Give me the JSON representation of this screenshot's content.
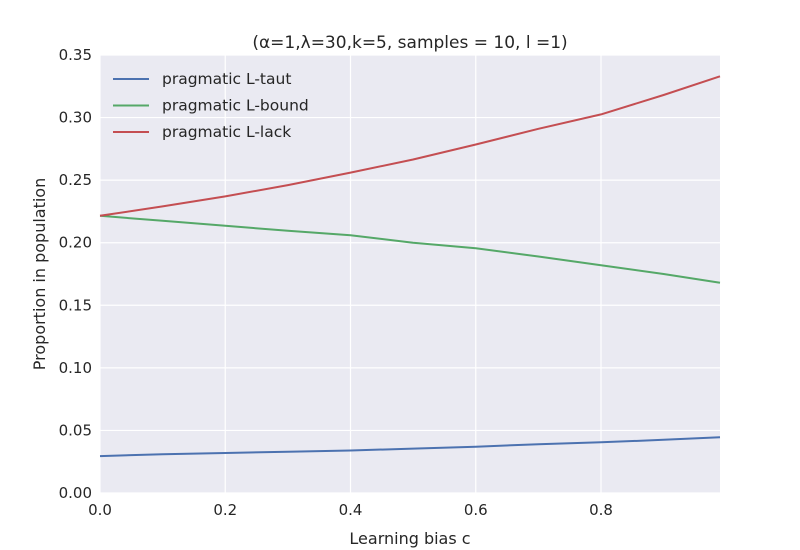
{
  "chart_data": {
    "type": "line",
    "title": "(α=1,λ=30,k=5, samples = 10, l =1)",
    "xlabel": "Learning bias c",
    "ylabel": "Proportion in population",
    "xlim": [
      0.0,
      0.99
    ],
    "ylim": [
      0.0,
      0.35
    ],
    "xticks": [
      "0.0",
      "0.2",
      "0.4",
      "0.6",
      "0.8"
    ],
    "yticks": [
      "0.00",
      "0.05",
      "0.10",
      "0.15",
      "0.20",
      "0.25",
      "0.30",
      "0.35"
    ],
    "grid": true,
    "legend_position": "top-left",
    "series": [
      {
        "name": "pragmatic L-taut",
        "color": "#4C72B0",
        "x": [
          0.0,
          0.1,
          0.2,
          0.3,
          0.4,
          0.5,
          0.6,
          0.7,
          0.8,
          0.9,
          0.99
        ],
        "values": [
          0.0295,
          0.031,
          0.032,
          0.033,
          0.034,
          0.0355,
          0.037,
          0.039,
          0.0405,
          0.0425,
          0.0445
        ]
      },
      {
        "name": "pragmatic L-bound",
        "color": "#55A868",
        "x": [
          0.0,
          0.1,
          0.2,
          0.3,
          0.4,
          0.5,
          0.6,
          0.7,
          0.8,
          0.9,
          0.99
        ],
        "values": [
          0.2215,
          0.2175,
          0.2135,
          0.2095,
          0.206,
          0.2,
          0.1955,
          0.189,
          0.182,
          0.175,
          0.168
        ]
      },
      {
        "name": "pragmatic L-lack",
        "color": "#C44E52",
        "x": [
          0.0,
          0.1,
          0.2,
          0.3,
          0.4,
          0.5,
          0.6,
          0.7,
          0.8,
          0.9,
          0.99
        ],
        "values": [
          0.2215,
          0.229,
          0.237,
          0.246,
          0.256,
          0.2665,
          0.2785,
          0.291,
          0.3025,
          0.318,
          0.333
        ]
      }
    ]
  }
}
